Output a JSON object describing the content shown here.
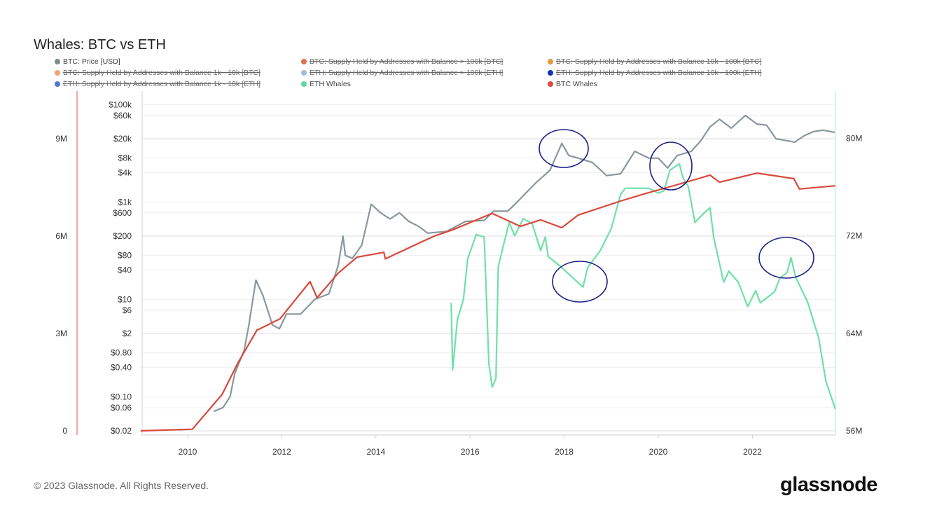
{
  "title": "Whales: BTC vs ETH",
  "footer": "© 2023 Glassnode. All Rights Reserved.",
  "logo": "glassnode",
  "legend": [
    {
      "label": "BTC: Price [USD]",
      "color": "#7f8c8d",
      "enabled": true
    },
    {
      "label": "BTC: Supply Held by Addresses with Balance > 100k [BTC]",
      "color": "#d9734f",
      "enabled": false
    },
    {
      "label": "BTC: Supply Held by Addresses with Balance 10k - 100k [BTC]",
      "color": "#e09a3c",
      "enabled": false
    },
    {
      "label": "BTC: Supply Held by Addresses with Balance 1k - 10k [BTC]",
      "color": "#efa46a",
      "enabled": false
    },
    {
      "label": "ETH: Supply Held by Addresses with Balance > 100k [ETH]",
      "color": "#a9b6df",
      "enabled": false
    },
    {
      "label": "ETH: Supply Held by Addresses with Balance 10k - 100k [ETH]",
      "color": "#1233b8",
      "enabled": false
    },
    {
      "label": "ETH: Supply Held by Addresses with Balance 1k - 10k [ETH]",
      "color": "#5577d4",
      "enabled": false
    },
    {
      "label": "ETH Whales",
      "color": "#5fd8a0",
      "enabled": true
    },
    {
      "label": "BTC Whales",
      "color": "#e04a40",
      "enabled": true
    }
  ],
  "chart_data": {
    "type": "line",
    "title": "Whales: BTC vs ETH",
    "grid": true,
    "legend_position": "top",
    "x_axis": {
      "ticks": [
        "2010",
        "2012",
        "2014",
        "2016",
        "2018",
        "2020",
        "2022"
      ],
      "range": [
        2009.0,
        2023.75
      ]
    },
    "y_left_supply": {
      "ticks": [
        "0",
        "3M",
        "6M",
        "9M"
      ],
      "range": [
        0,
        9
      ]
    },
    "y_price": {
      "scale": "log",
      "ticks": [
        "$100k",
        "$60k",
        "$20k",
        "$8k",
        "$4k",
        "$1k",
        "$600",
        "$200",
        "$80",
        "$40",
        "$10",
        "$6",
        "$2",
        "$0.80",
        "$0.40",
        "$0.10",
        "$0.06",
        "$0.02"
      ],
      "range": [
        0.02,
        100000
      ]
    },
    "y_right_supply": {
      "ticks": [
        "80M",
        "72M",
        "64M",
        "56M"
      ],
      "range": [
        56,
        80
      ]
    },
    "series": [
      {
        "name": "BTC: Price [USD]",
        "axis": "price",
        "color": "#8a979c",
        "x": [
          2010.55,
          2010.75,
          2010.9,
          2011.0,
          2011.2,
          2011.3,
          2011.45,
          2011.6,
          2011.8,
          2011.95,
          2012.1,
          2012.4,
          2012.7,
          2013.0,
          2013.2,
          2013.3,
          2013.35,
          2013.5,
          2013.7,
          2013.9,
          2014.1,
          2014.3,
          2014.5,
          2014.7,
          2014.9,
          2015.1,
          2015.5,
          2015.9,
          2016.3,
          2016.5,
          2016.8,
          2017.0,
          2017.4,
          2017.7,
          2017.95,
          2018.1,
          2018.3,
          2018.6,
          2018.9,
          2019.2,
          2019.5,
          2019.8,
          2020.0,
          2020.2,
          2020.4,
          2020.7,
          2020.9,
          2021.1,
          2021.3,
          2021.55,
          2021.85,
          2022.1,
          2022.3,
          2022.5,
          2022.9,
          2023.1,
          2023.3,
          2023.5,
          2023.75
        ],
        "y": [
          0.05,
          0.06,
          0.1,
          0.3,
          0.9,
          3,
          25,
          12,
          3,
          2.5,
          5,
          5,
          10,
          13,
          50,
          200,
          80,
          70,
          130,
          900,
          600,
          450,
          600,
          400,
          320,
          230,
          250,
          400,
          420,
          650,
          650,
          1000,
          2500,
          4500,
          16000,
          9000,
          8000,
          6500,
          3500,
          3800,
          11000,
          8000,
          8000,
          5000,
          9000,
          11000,
          18000,
          35000,
          50000,
          33000,
          60000,
          40000,
          38000,
          20000,
          17000,
          23000,
          28000,
          30000,
          27000
        ]
      },
      {
        "name": "BTC Whales",
        "axis": "left",
        "unit": "M BTC",
        "color": "#d9483b",
        "x": [
          2009.0,
          2010.1,
          2010.73,
          2011.07,
          2011.47,
          2011.96,
          2012.6,
          2012.75,
          2013.2,
          2013.6,
          2014.17,
          2014.2,
          2014.94,
          2015.24,
          2015.64,
          2016.47,
          2017.07,
          2017.5,
          2017.95,
          2018.3,
          2019.2,
          2019.7,
          2020.2,
          2020.85,
          2021.1,
          2021.3,
          2022.1,
          2022.88,
          2023.0,
          2023.76
        ],
        "y": [
          0.0,
          0.05,
          1.12,
          2.1,
          3.1,
          3.45,
          4.6,
          4.1,
          4.86,
          5.35,
          5.5,
          5.3,
          5.8,
          6.0,
          6.2,
          6.7,
          6.3,
          6.5,
          6.26,
          6.65,
          7.08,
          7.3,
          7.5,
          7.77,
          7.88,
          7.66,
          7.94,
          7.77,
          7.45,
          7.55
        ]
      },
      {
        "name": "ETH Whales",
        "axis": "right",
        "unit": "M ETH",
        "color": "#6ee0a8",
        "x": [
          2015.6,
          2015.63,
          2015.73,
          2015.86,
          2015.95,
          2016.13,
          2016.3,
          2016.4,
          2016.47,
          2016.55,
          2016.6,
          2016.83,
          2016.95,
          2017.13,
          2017.32,
          2017.5,
          2017.6,
          2017.66,
          2017.92,
          2018.2,
          2018.4,
          2018.5,
          2018.77,
          2019.0,
          2019.2,
          2019.3,
          2019.8,
          2020.0,
          2020.12,
          2020.25,
          2020.45,
          2020.52,
          2020.64,
          2020.78,
          2020.98,
          2021.1,
          2021.18,
          2021.39,
          2021.5,
          2021.7,
          2021.9,
          2022.07,
          2022.17,
          2022.47,
          2022.58,
          2022.74,
          2022.82,
          2022.92,
          2023.17,
          2023.41,
          2023.56,
          2023.76
        ],
        "y": [
          66.5,
          61.0,
          65.1,
          66.8,
          70.1,
          72.1,
          71.9,
          61.5,
          59.6,
          60.3,
          69.5,
          73.1,
          72.0,
          73.4,
          73.0,
          70.8,
          71.9,
          70.3,
          69.5,
          68.5,
          67.8,
          69.4,
          70.8,
          72.6,
          75.4,
          75.9,
          75.9,
          75.5,
          75.7,
          77.4,
          77.9,
          76.8,
          76.0,
          73.1,
          73.9,
          74.3,
          71.8,
          68.2,
          69.1,
          68.2,
          66.2,
          67.5,
          66.5,
          67.4,
          68.5,
          69.0,
          70.2,
          68.6,
          66.6,
          63.6,
          60.1,
          57.8
        ]
      }
    ]
  }
}
